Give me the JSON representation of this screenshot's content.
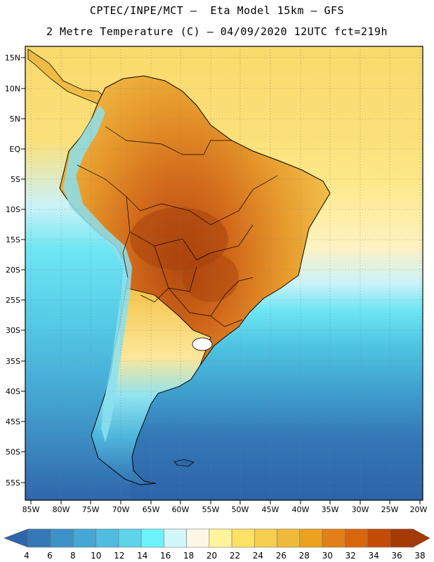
{
  "header": {
    "line1": "CPTEC/INPE/MCT –  Eta Model 15km – GFS",
    "line2": "2 Metre Temperature (C) – 04/09/2020 12UTC fct=219h"
  },
  "map": {
    "region": "South America",
    "lat_labels": [
      "15N",
      "10N",
      "5N",
      "EQ",
      "5S",
      "10S",
      "15S",
      "20S",
      "25S",
      "30S",
      "35S",
      "40S",
      "45S",
      "50S",
      "55S"
    ],
    "lon_labels": [
      "85W",
      "80W",
      "75W",
      "70W",
      "65W",
      "60W",
      "55W",
      "50W",
      "45W",
      "40W",
      "35W",
      "30W",
      "25W",
      "20W"
    ]
  },
  "colorbar": {
    "unit": "C",
    "labels": [
      "4",
      "6",
      "8",
      "10",
      "12",
      "14",
      "16",
      "18",
      "20",
      "22",
      "24",
      "26",
      "28",
      "30",
      "32",
      "34",
      "36",
      "38"
    ],
    "colors": [
      "#2e63a6",
      "#3479b5",
      "#3c92c6",
      "#45a7d4",
      "#50bcdf",
      "#5fd3ea",
      "#6cf3fa",
      "#d2f7fb",
      "#fff7e6",
      "#fff49a",
      "#ffe164",
      "#f6cf4e",
      "#efb939",
      "#eca21e",
      "#e08016",
      "#d9650c",
      "#c44a06",
      "#a63a03"
    ]
  }
}
